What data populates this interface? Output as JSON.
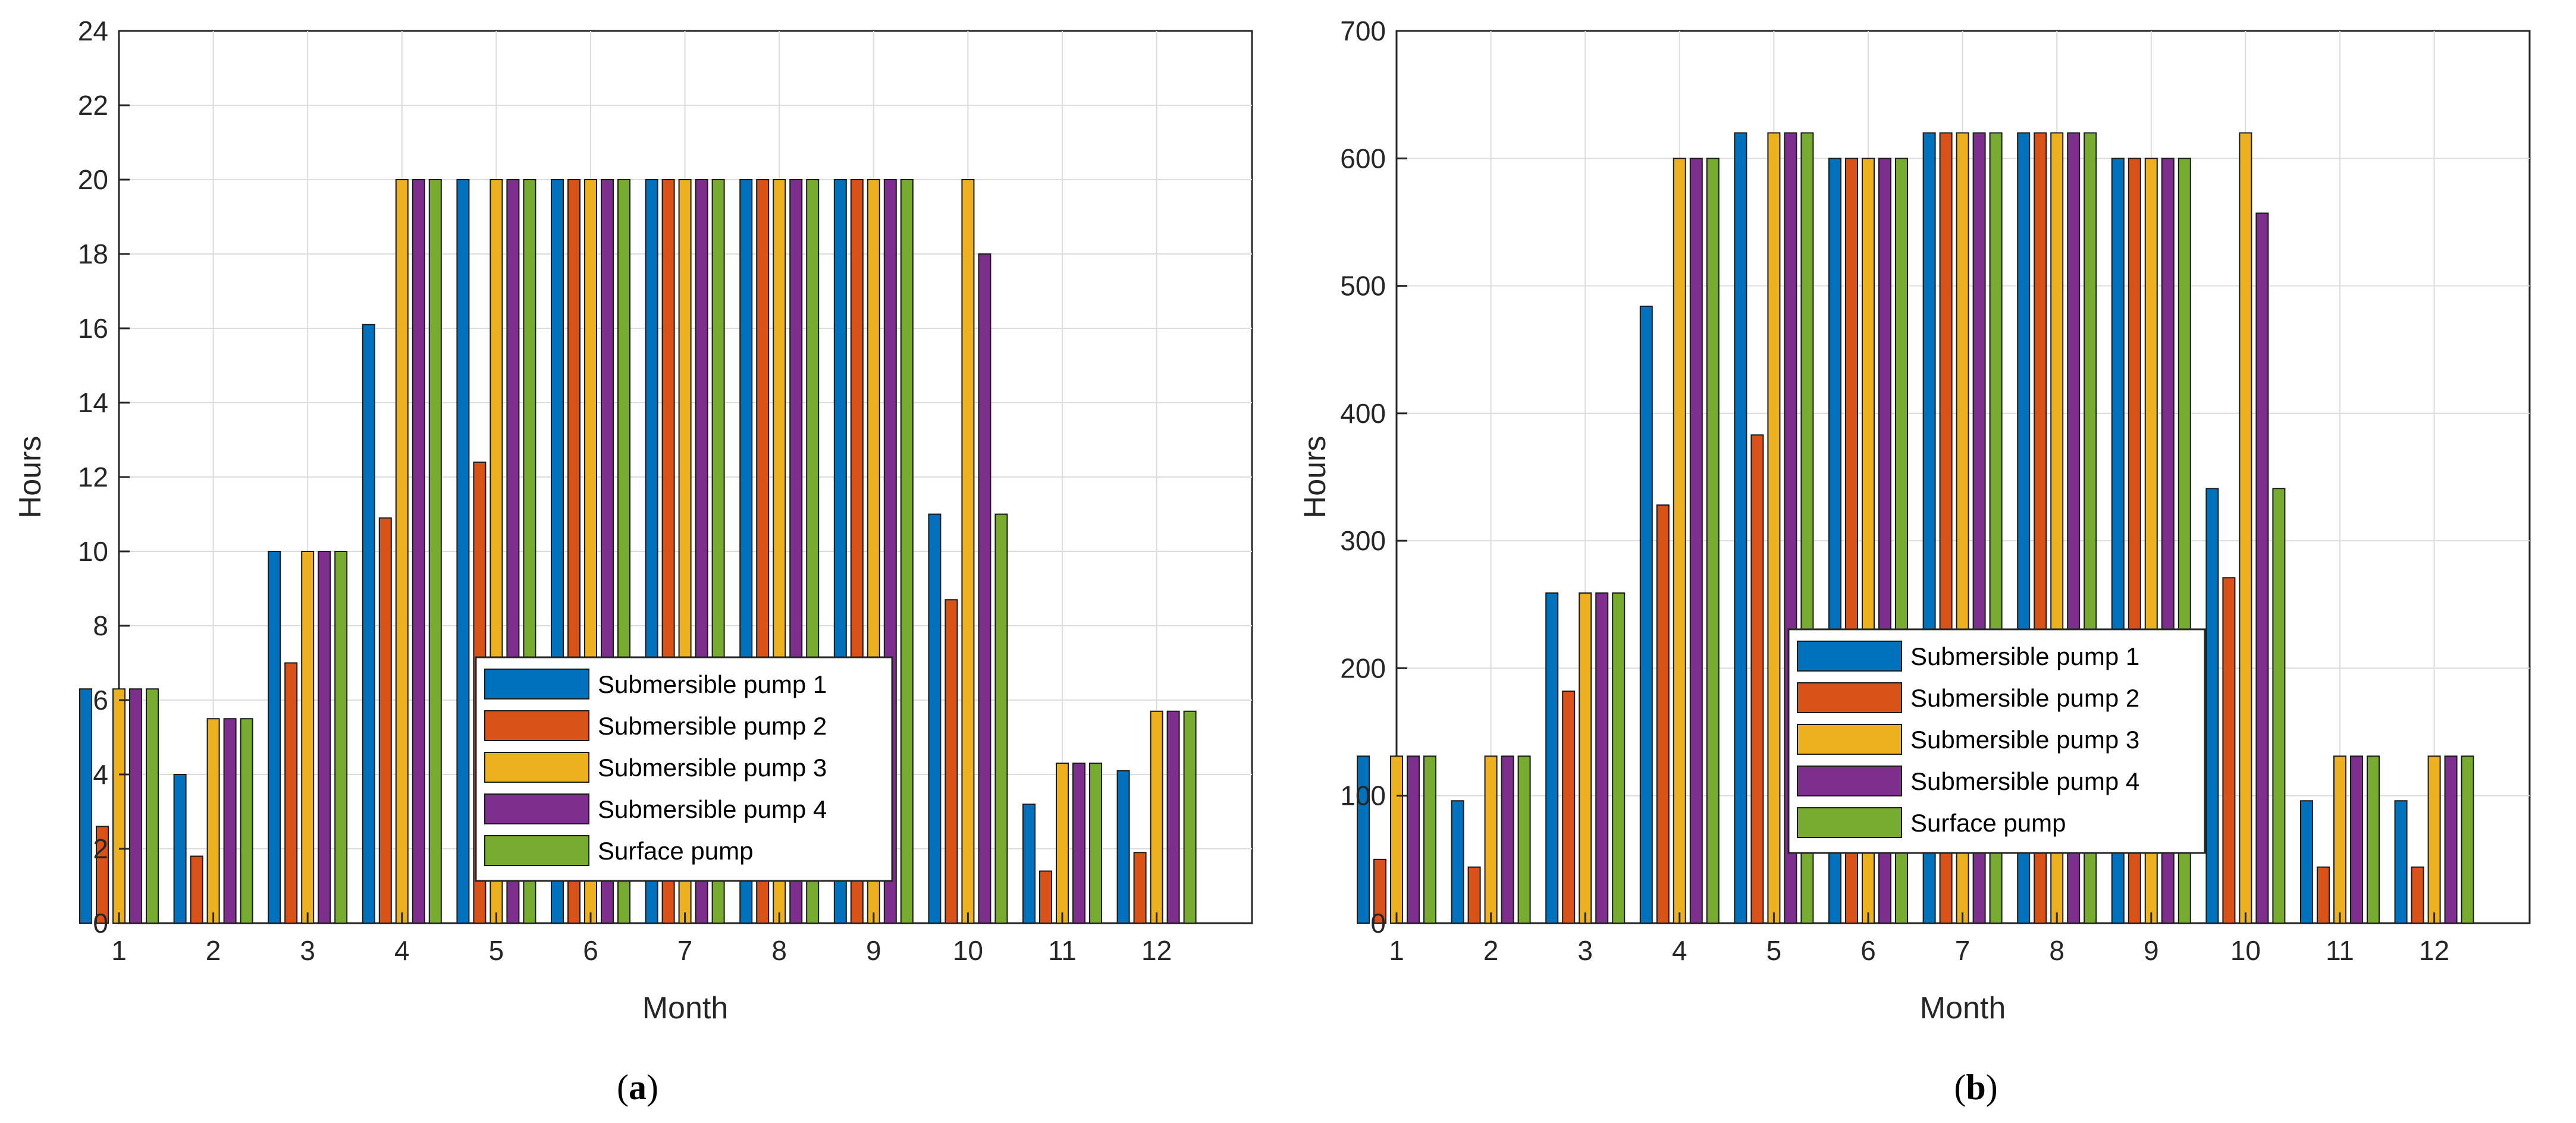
{
  "chart_data": [
    {
      "type": "bar",
      "panel_label": "a",
      "xlabel": "Month",
      "ylabel": "Hours",
      "ylim": [
        0,
        24
      ],
      "yticks": [
        0,
        2,
        4,
        6,
        8,
        10,
        12,
        14,
        16,
        18,
        20,
        22,
        24
      ],
      "grid": true,
      "legend_position": "center-right",
      "categories": [
        "1",
        "2",
        "3",
        "4",
        "5",
        "6",
        "7",
        "8",
        "9",
        "10",
        "11",
        "12"
      ],
      "series": [
        {
          "name": "Submersible pump 1",
          "values": [
            6.3,
            4.0,
            10.0,
            16.1,
            20.0,
            20.0,
            20.0,
            20.0,
            20.0,
            11.0,
            3.2,
            4.1
          ]
        },
        {
          "name": "Submersible pump 2",
          "values": [
            2.6,
            1.8,
            7.0,
            10.9,
            12.4,
            20.0,
            20.0,
            20.0,
            20.0,
            8.7,
            1.4,
            1.9
          ]
        },
        {
          "name": "Submersible pump 3",
          "values": [
            6.3,
            5.5,
            10.0,
            20.0,
            20.0,
            20.0,
            20.0,
            20.0,
            20.0,
            20.0,
            4.3,
            5.7
          ]
        },
        {
          "name": "Submersible pump 4",
          "values": [
            6.3,
            5.5,
            10.0,
            20.0,
            20.0,
            20.0,
            20.0,
            20.0,
            20.0,
            18.0,
            4.3,
            5.7
          ]
        },
        {
          "name": "Surface pump",
          "values": [
            6.3,
            5.5,
            10.0,
            20.0,
            20.0,
            20.0,
            20.0,
            20.0,
            20.0,
            11.0,
            4.3,
            5.7
          ]
        }
      ]
    },
    {
      "type": "bar",
      "panel_label": "b",
      "xlabel": "Month",
      "ylabel": "Hours",
      "ylim": [
        0,
        700
      ],
      "yticks": [
        0,
        100,
        200,
        300,
        400,
        500,
        600,
        700
      ],
      "grid": true,
      "legend_position": "center",
      "categories": [
        "1",
        "2",
        "3",
        "4",
        "5",
        "6",
        "7",
        "8",
        "9",
        "10",
        "11",
        "12"
      ],
      "series": [
        {
          "name": "Submersible pump 1",
          "values": [
            131,
            96,
            259,
            484,
            620,
            600,
            620,
            620,
            600,
            341,
            96,
            96
          ]
        },
        {
          "name": "Submersible pump 2",
          "values": [
            50,
            44,
            182,
            328,
            383,
            600,
            620,
            620,
            600,
            271,
            44,
            44
          ]
        },
        {
          "name": "Submersible pump 3",
          "values": [
            131,
            131,
            259,
            600,
            620,
            600,
            620,
            620,
            600,
            620,
            131,
            131
          ]
        },
        {
          "name": "Submersible pump 4",
          "values": [
            131,
            131,
            259,
            600,
            620,
            600,
            620,
            620,
            600,
            557,
            131,
            131
          ]
        },
        {
          "name": "Surface pump",
          "values": [
            131,
            131,
            259,
            600,
            620,
            600,
            620,
            620,
            600,
            341,
            131,
            131
          ]
        }
      ]
    }
  ],
  "series_colors": [
    "#0072BD",
    "#D95319",
    "#EDB120",
    "#7E2F8E",
    "#77AC30"
  ]
}
